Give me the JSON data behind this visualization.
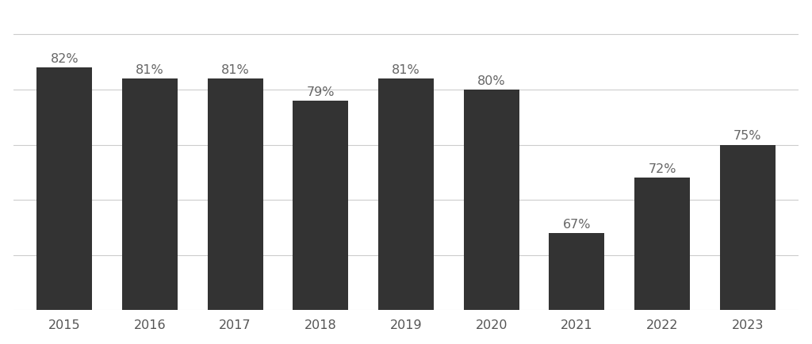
{
  "categories": [
    "2015",
    "2016",
    "2017",
    "2018",
    "2019",
    "2020",
    "2021",
    "2022",
    "2023"
  ],
  "values": [
    82,
    81,
    81,
    79,
    81,
    80,
    67,
    72,
    75
  ],
  "bar_color": "#333333",
  "label_color": "#666666",
  "background_color": "#ffffff",
  "label_fontsize": 11.5,
  "tick_fontsize": 11.5,
  "ylim": [
    60,
    87
  ],
  "grid_color": "#cccccc",
  "grid_linewidth": 0.8,
  "bar_width": 0.65,
  "grid_y_positions": [
    65,
    70,
    75,
    80,
    85
  ]
}
